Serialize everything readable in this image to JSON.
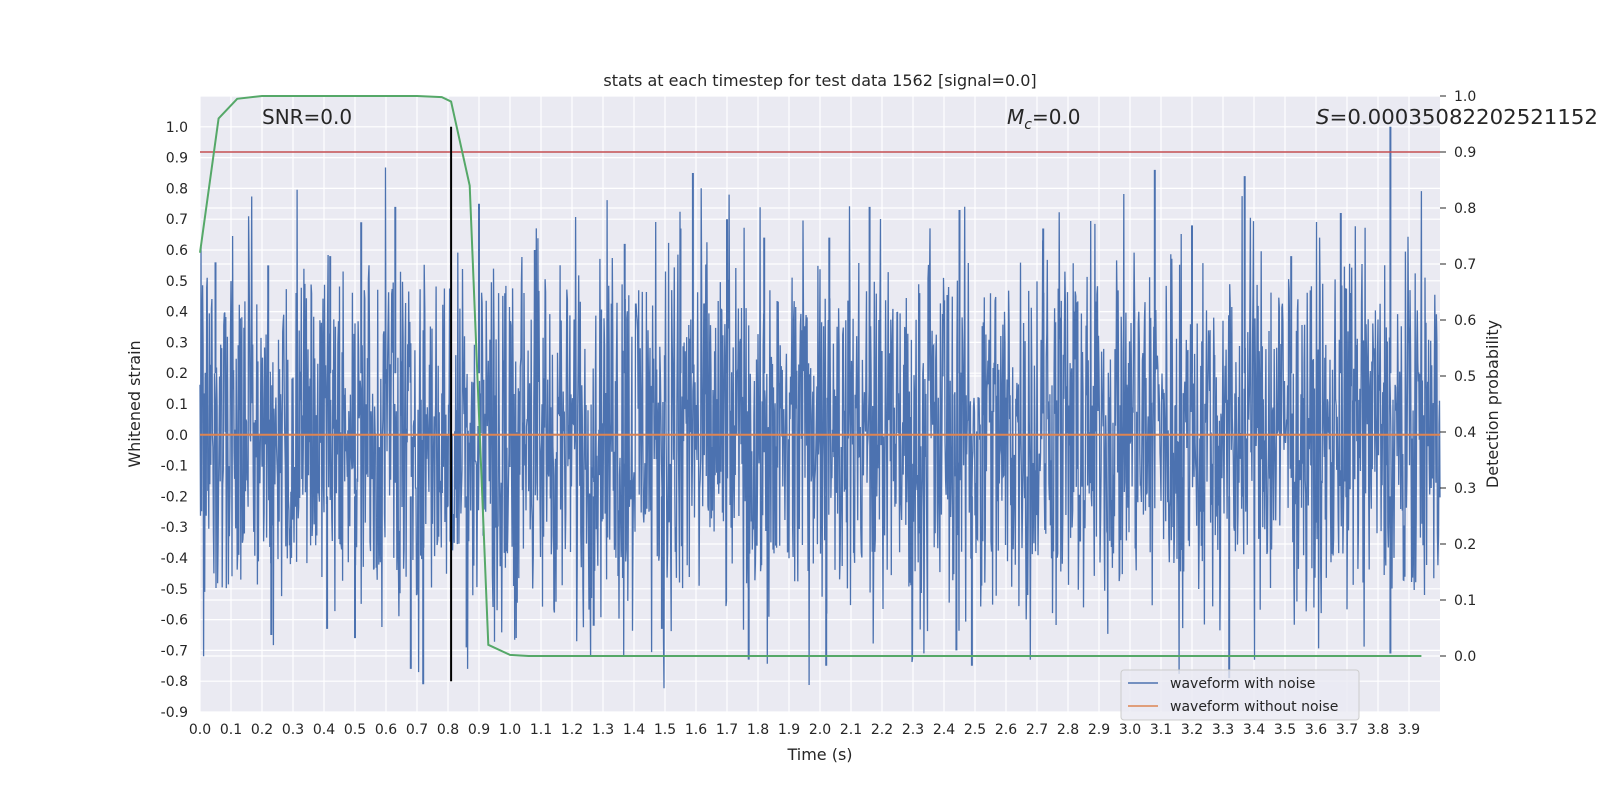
{
  "chart_data": {
    "type": "line",
    "title": "stats at each timestep for test data 1562 [signal=0.0]",
    "xlabel": "Time (s)",
    "ylabel": "Whitened strain",
    "y2label": "Detection probability",
    "xlim": [
      0.0,
      4.0
    ],
    "ylim": [
      -0.9,
      1.1
    ],
    "y2lim": [
      -0.1,
      1.0
    ],
    "x_ticks": [
      "0.0",
      "0.1",
      "0.2",
      "0.3",
      "0.4",
      "0.5",
      "0.6",
      "0.7",
      "0.8",
      "0.9",
      "1.0",
      "1.1",
      "1.2",
      "1.3",
      "1.4",
      "1.5",
      "1.6",
      "1.7",
      "1.8",
      "1.9",
      "2.0",
      "2.1",
      "2.2",
      "2.3",
      "2.4",
      "2.5",
      "2.6",
      "2.7",
      "2.8",
      "2.9",
      "3.0",
      "3.1",
      "3.2",
      "3.3",
      "3.4",
      "3.5",
      "3.6",
      "3.7",
      "3.8",
      "3.9"
    ],
    "y_ticks": [
      "-0.9",
      "-0.8",
      "-0.7",
      "-0.6",
      "-0.5",
      "-0.4",
      "-0.3",
      "-0.2",
      "-0.1",
      "0.0",
      "0.1",
      "0.2",
      "0.3",
      "0.4",
      "0.5",
      "0.6",
      "0.7",
      "0.8",
      "0.9",
      "1.0"
    ],
    "y2_ticks": [
      "0.0",
      "0.1",
      "0.2",
      "0.3",
      "0.4",
      "0.5",
      "0.6",
      "0.7",
      "0.8",
      "0.9",
      "1.0"
    ],
    "grid": true,
    "legend_position": "lower-right",
    "annotations": {
      "snr": "SNR=0.0",
      "mc_symbol": "M",
      "mc_sub": "c",
      "mc_value": "=0.0",
      "s_symbol": "S",
      "s_value": "=0.00035082202521152"
    },
    "series": [
      {
        "name": "waveform with noise",
        "color": "#4c72b0",
        "peaks": [
          {
            "x": 0.05,
            "y": 0.56
          },
          {
            "x": 0.22,
            "y": 0.55
          },
          {
            "x": 0.42,
            "y": 0.58
          },
          {
            "x": 0.52,
            "y": 0.69
          },
          {
            "x": 0.63,
            "y": 0.74
          },
          {
            "x": 0.9,
            "y": 0.75
          },
          {
            "x": 1.08,
            "y": 0.6
          },
          {
            "x": 1.37,
            "y": 0.62
          },
          {
            "x": 1.55,
            "y": 0.67
          },
          {
            "x": 1.59,
            "y": 0.85
          },
          {
            "x": 1.7,
            "y": 0.7
          },
          {
            "x": 1.82,
            "y": 0.64
          },
          {
            "x": 2.03,
            "y": 0.64
          },
          {
            "x": 2.16,
            "y": 0.74
          },
          {
            "x": 2.45,
            "y": 0.73
          },
          {
            "x": 2.72,
            "y": 0.67
          },
          {
            "x": 3.08,
            "y": 0.86
          },
          {
            "x": 3.2,
            "y": 0.68
          },
          {
            "x": 3.37,
            "y": 0.84
          },
          {
            "x": 3.52,
            "y": 0.58
          },
          {
            "x": 3.68,
            "y": 0.72
          },
          {
            "x": 3.84,
            "y": 1.0
          }
        ],
        "troughs": [
          {
            "x": 0.23,
            "y": -0.65
          },
          {
            "x": 0.41,
            "y": -0.63
          },
          {
            "x": 0.5,
            "y": -0.66
          },
          {
            "x": 0.68,
            "y": -0.76
          },
          {
            "x": 0.72,
            "y": -0.81
          },
          {
            "x": 0.86,
            "y": -0.69
          },
          {
            "x": 1.27,
            "y": -0.62
          },
          {
            "x": 1.49,
            "y": -0.63
          },
          {
            "x": 1.77,
            "y": -0.73
          },
          {
            "x": 2.02,
            "y": -0.75
          },
          {
            "x": 2.44,
            "y": -0.7
          },
          {
            "x": 2.49,
            "y": -0.75
          },
          {
            "x": 3.32,
            "y": -0.79
          },
          {
            "x": 3.84,
            "y": -0.71
          }
        ]
      },
      {
        "name": "waveform without noise",
        "color": "#dd8452",
        "x": [
          0.0,
          4.0
        ],
        "y": [
          0.0,
          0.0
        ]
      },
      {
        "name": "",
        "axis": "right",
        "color": "#55a868",
        "x": [
          0.0,
          0.06,
          0.12,
          0.2,
          0.3,
          0.5,
          0.7,
          0.78,
          0.81,
          0.87,
          0.93,
          1.0,
          1.06,
          1.2,
          2.0,
          3.0,
          3.94
        ],
        "y": [
          0.72,
          0.96,
          0.995,
          1.0,
          1.0,
          1.0,
          1.0,
          0.998,
          0.99,
          0.84,
          0.02,
          0.002,
          0.0,
          0.0,
          0.0,
          0.0,
          0.0
        ]
      }
    ],
    "threshold": {
      "axis": "right",
      "value": 0.9,
      "color": "#c44e52"
    },
    "marker_x": 0.81,
    "marker_y_range": [
      -0.8,
      1.0
    ]
  }
}
